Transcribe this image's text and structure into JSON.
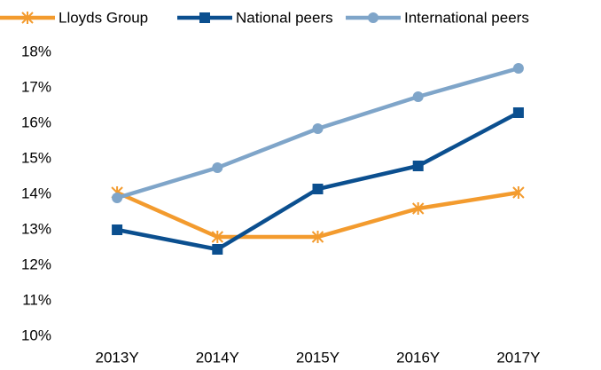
{
  "chart_data": {
    "type": "line",
    "categories": [
      "2013Y",
      "2014Y",
      "2015Y",
      "2016Y",
      "2017Y"
    ],
    "series": [
      {
        "name": "Lloyds Group",
        "color": "#f39b2e",
        "marker": "asterisk",
        "values": [
          14.05,
          12.8,
          12.8,
          13.6,
          14.05
        ]
      },
      {
        "name": "National peers",
        "color": "#0b4f8f",
        "marker": "square",
        "values": [
          13.0,
          12.45,
          14.15,
          14.8,
          16.3
        ]
      },
      {
        "name": "International peers",
        "color": "#7fa5c9",
        "marker": "circle",
        "values": [
          13.9,
          14.75,
          15.85,
          16.75,
          17.55
        ]
      }
    ],
    "ylim": [
      10,
      18
    ],
    "yticks": [
      {
        "value": 10,
        "label": "10%"
      },
      {
        "value": 11,
        "label": "11%"
      },
      {
        "value": 12,
        "label": "12%"
      },
      {
        "value": 13,
        "label": "13%"
      },
      {
        "value": 14,
        "label": "14%"
      },
      {
        "value": 15,
        "label": "15%"
      },
      {
        "value": 16,
        "label": "16%"
      },
      {
        "value": 17,
        "label": "17%"
      },
      {
        "value": 18,
        "label": "18%"
      }
    ],
    "grid": false,
    "legend": "top"
  }
}
